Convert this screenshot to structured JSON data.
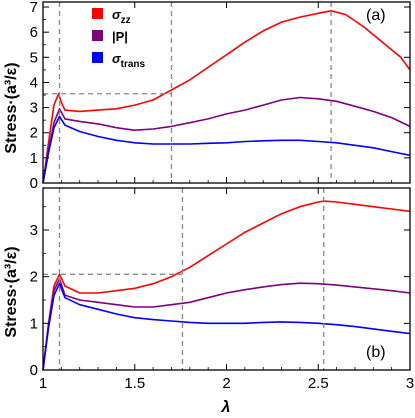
{
  "chart_data": [
    {
      "type": "line",
      "panel_label": "(a)",
      "xlabel": "",
      "ylabel": "Stress·(a³/ε)",
      "xlim": [
        1,
        3
      ],
      "ylim": [
        0,
        7.2
      ],
      "xticks": [
        "1",
        "1.5",
        "2",
        "2.5",
        "3"
      ],
      "yticks": [
        "0",
        "1",
        "2",
        "3",
        "4",
        "5",
        "6",
        "7"
      ],
      "legend_position": "top-left",
      "series": [
        {
          "name": "σzz",
          "legend_main": "σ",
          "legend_sub": "zz",
          "color": "#ff0000",
          "x": [
            1.0,
            1.03,
            1.06,
            1.085,
            1.1,
            1.12,
            1.2,
            1.3,
            1.4,
            1.5,
            1.6,
            1.7,
            1.8,
            1.9,
            2.0,
            2.1,
            2.2,
            2.3,
            2.4,
            2.5,
            2.57,
            2.65,
            2.75,
            2.85,
            2.95,
            3.0
          ],
          "y": [
            0,
            1.6,
            3.1,
            3.55,
            3.2,
            2.9,
            2.85,
            2.9,
            2.95,
            3.1,
            3.3,
            3.7,
            4.1,
            4.6,
            5.1,
            5.6,
            6.05,
            6.4,
            6.6,
            6.75,
            6.85,
            6.7,
            6.2,
            5.6,
            5.0,
            4.5
          ]
        },
        {
          "name": "|P|",
          "legend_main": "|P|",
          "legend_sub": "",
          "color": "#800080",
          "x": [
            1.0,
            1.03,
            1.06,
            1.09,
            1.12,
            1.2,
            1.3,
            1.4,
            1.5,
            1.6,
            1.7,
            1.8,
            1.9,
            2.0,
            2.1,
            2.2,
            2.3,
            2.4,
            2.5,
            2.6,
            2.7,
            2.8,
            2.9,
            3.0
          ],
          "y": [
            0,
            1.3,
            2.4,
            2.95,
            2.55,
            2.45,
            2.35,
            2.2,
            2.1,
            2.15,
            2.25,
            2.4,
            2.55,
            2.75,
            2.9,
            3.1,
            3.3,
            3.4,
            3.35,
            3.25,
            3.05,
            2.85,
            2.6,
            2.25
          ]
        },
        {
          "name": "σtrans",
          "legend_main": "σ",
          "legend_sub": "trans",
          "color": "#0000ff",
          "x": [
            1.0,
            1.03,
            1.06,
            1.09,
            1.12,
            1.2,
            1.3,
            1.4,
            1.5,
            1.6,
            1.7,
            1.8,
            1.9,
            2.0,
            2.1,
            2.2,
            2.3,
            2.4,
            2.5,
            2.6,
            2.7,
            2.8,
            2.9,
            3.0
          ],
          "y": [
            0,
            1.2,
            2.2,
            2.65,
            2.3,
            2.05,
            1.85,
            1.7,
            1.6,
            1.55,
            1.55,
            1.55,
            1.58,
            1.6,
            1.65,
            1.68,
            1.7,
            1.7,
            1.65,
            1.6,
            1.5,
            1.4,
            1.25,
            1.1
          ]
        }
      ],
      "guide_lines": {
        "vertical_x": [
          1.09,
          1.7,
          2.57
        ],
        "horizontal": [
          {
            "y": 3.55,
            "x_from": 1.0,
            "x_to": 1.7
          }
        ]
      }
    },
    {
      "type": "line",
      "panel_label": "(b)",
      "xlabel": "λ",
      "ylabel": "Stress·(a³/ε)",
      "xlim": [
        1,
        3
      ],
      "ylim": [
        0,
        3.9
      ],
      "xticks": [
        "1",
        "1.5",
        "2",
        "2.5",
        "3"
      ],
      "yticks": [
        "0",
        "1",
        "2",
        "3"
      ],
      "series": [
        {
          "name": "σzz",
          "color": "#ff0000",
          "x": [
            1.0,
            1.03,
            1.06,
            1.09,
            1.12,
            1.2,
            1.3,
            1.4,
            1.5,
            1.6,
            1.7,
            1.8,
            1.9,
            2.0,
            2.1,
            2.2,
            2.3,
            2.4,
            2.5,
            2.53,
            2.6,
            2.7,
            2.8,
            2.9,
            3.0
          ],
          "y": [
            0,
            1.0,
            1.8,
            2.05,
            1.8,
            1.65,
            1.65,
            1.7,
            1.75,
            1.85,
            2.0,
            2.2,
            2.45,
            2.7,
            2.95,
            3.15,
            3.35,
            3.5,
            3.6,
            3.62,
            3.6,
            3.55,
            3.5,
            3.45,
            3.4
          ]
        },
        {
          "name": "|P|",
          "color": "#800080",
          "x": [
            1.0,
            1.03,
            1.06,
            1.09,
            1.12,
            1.2,
            1.3,
            1.4,
            1.5,
            1.6,
            1.7,
            1.8,
            1.9,
            2.0,
            2.1,
            2.2,
            2.3,
            2.4,
            2.5,
            2.6,
            2.7,
            2.8,
            2.9,
            3.0
          ],
          "y": [
            0,
            0.95,
            1.7,
            1.95,
            1.6,
            1.5,
            1.45,
            1.4,
            1.35,
            1.35,
            1.4,
            1.45,
            1.55,
            1.65,
            1.72,
            1.78,
            1.83,
            1.86,
            1.85,
            1.82,
            1.78,
            1.74,
            1.7,
            1.65
          ]
        },
        {
          "name": "σtrans",
          "color": "#0000ff",
          "x": [
            1.0,
            1.03,
            1.06,
            1.09,
            1.12,
            1.2,
            1.3,
            1.4,
            1.5,
            1.6,
            1.7,
            1.8,
            1.9,
            2.0,
            2.1,
            2.2,
            2.3,
            2.4,
            2.5,
            2.6,
            2.7,
            2.8,
            2.9,
            3.0
          ],
          "y": [
            0,
            0.9,
            1.6,
            1.85,
            1.55,
            1.4,
            1.3,
            1.2,
            1.12,
            1.08,
            1.05,
            1.02,
            1.0,
            1.0,
            1.0,
            1.02,
            1.03,
            1.02,
            1.0,
            0.97,
            0.93,
            0.88,
            0.83,
            0.78
          ]
        }
      ],
      "guide_lines": {
        "vertical_x": [
          1.09,
          1.76,
          2.53
        ],
        "horizontal": [
          {
            "y": 2.05,
            "x_from": 1.0,
            "x_to": 1.76
          }
        ]
      }
    }
  ]
}
